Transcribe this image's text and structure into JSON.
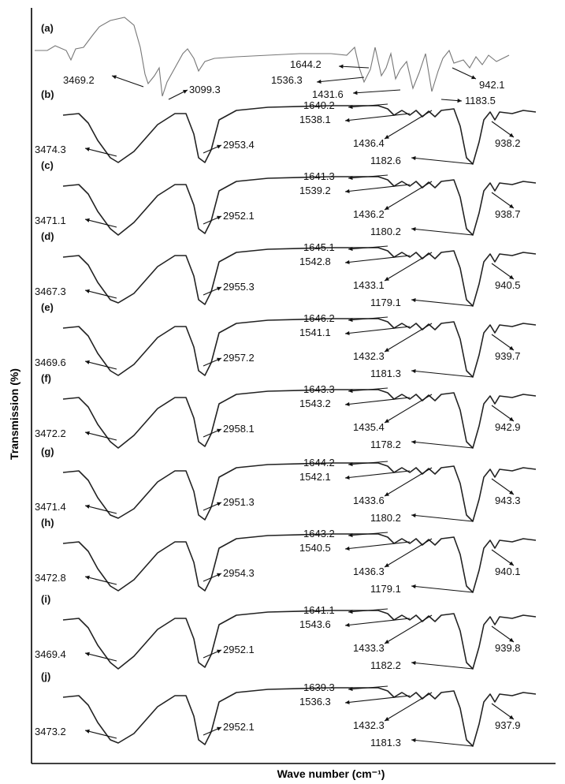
{
  "chart_data": {
    "type": "line",
    "xlabel": "Wave number (cm⁻¹)",
    "ylabel": "Transmission (%)",
    "x_reversed": true,
    "grid": false,
    "series": [
      {
        "name": "(a)",
        "peaks": [
          3469.2,
          3099.3,
          1644.2,
          1536.3,
          1431.6,
          1183.5,
          942.1
        ]
      },
      {
        "name": "(b)",
        "peaks": [
          3474.3,
          2953.4,
          1640.2,
          1538.1,
          1436.4,
          1182.6,
          938.2
        ]
      },
      {
        "name": "(c)",
        "peaks": [
          3471.1,
          2952.1,
          1641.3,
          1539.2,
          1436.2,
          1180.2,
          938.7
        ]
      },
      {
        "name": "(d)",
        "peaks": [
          3467.3,
          2955.3,
          1645.1,
          1542.8,
          1433.1,
          1179.1,
          940.5
        ]
      },
      {
        "name": "(e)",
        "peaks": [
          3469.6,
          2957.2,
          1646.2,
          1541.1,
          1432.3,
          1181.3,
          939.7
        ]
      },
      {
        "name": "(f)",
        "peaks": [
          3472.2,
          2958.1,
          1643.3,
          1543.2,
          1435.4,
          1178.2,
          942.9
        ]
      },
      {
        "name": "(g)",
        "peaks": [
          3471.4,
          2951.3,
          1644.2,
          1542.1,
          1433.6,
          1180.2,
          943.3
        ]
      },
      {
        "name": "(h)",
        "peaks": [
          3472.8,
          2954.3,
          1643.2,
          1540.5,
          1436.3,
          1179.1,
          940.1
        ]
      },
      {
        "name": "(i)",
        "peaks": [
          3469.4,
          2952.1,
          1641.1,
          1543.6,
          1433.3,
          1182.2,
          939.8
        ]
      },
      {
        "name": "(j)",
        "peaks": [
          3473.2,
          2952.1,
          1639.3,
          1536.3,
          1432.3,
          1181.3,
          937.9
        ]
      }
    ]
  }
}
